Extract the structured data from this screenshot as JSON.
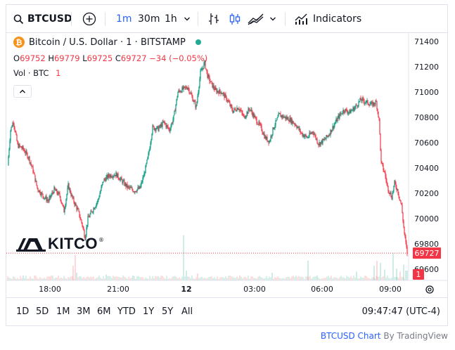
{
  "toolbar": {
    "symbol": "BTCUSD",
    "intervals": [
      "1m",
      "30m",
      "1h"
    ],
    "active_interval": "1m",
    "indicators_label": "Indicators"
  },
  "legend": {
    "title": "Bitcoin / U.S. Dollar · 1 · BITSTAMP",
    "o_label": "O",
    "o_value": "69752",
    "h_label": "H",
    "h_value": "69779",
    "l_label": "L",
    "l_value": "69725",
    "c_label": "C",
    "c_value": "69727",
    "change": "−34 (−0.05%)",
    "vol_label": "Vol · BTC",
    "vol_value": "1"
  },
  "logo": {
    "text": "KITCO"
  },
  "price_axis": {
    "ticks": [
      "71400",
      "71200",
      "71000",
      "70800",
      "70600",
      "70400",
      "70200",
      "70000",
      "69800",
      "69600"
    ],
    "last_price": "69727",
    "last_volume": "1"
  },
  "time_axis": {
    "ticks": [
      "18:00",
      "21:00",
      "12",
      "03:00",
      "06:00",
      "09:00"
    ]
  },
  "bottom": {
    "ranges": [
      "1D",
      "5D",
      "1M",
      "3M",
      "6M",
      "YTD",
      "1Y",
      "5Y",
      "All"
    ],
    "clock": "09:47:47 (UTC-4)"
  },
  "credit": {
    "link_text": "BTCUSD Chart",
    "by_text": "By TradingView"
  },
  "colors": {
    "up": "#089981",
    "down": "#f23645",
    "accent": "#2962ff",
    "btc": "#f7931a"
  },
  "chart_data": {
    "type": "candlestick",
    "series_name": "BTCUSD",
    "x_ticks": [
      "18:00",
      "21:00",
      "12",
      "03:00",
      "06:00",
      "09:00"
    ],
    "ylim": [
      69530,
      71460
    ],
    "y_ticks": [
      71400,
      71200,
      71000,
      70800,
      70600,
      70400,
      70200,
      70000,
      69800,
      69600
    ],
    "path": [
      [
        0,
        70420
      ],
      [
        4,
        70700
      ],
      [
        8,
        70770
      ],
      [
        14,
        70580
      ],
      [
        22,
        70550
      ],
      [
        30,
        70480
      ],
      [
        36,
        70380
      ],
      [
        42,
        70240
      ],
      [
        50,
        70180
      ],
      [
        58,
        70140
      ],
      [
        66,
        70230
      ],
      [
        74,
        70180
      ],
      [
        80,
        70060
      ],
      [
        86,
        70260
      ],
      [
        92,
        70160
      ],
      [
        100,
        70060
      ],
      [
        106,
        69950
      ],
      [
        110,
        69850
      ],
      [
        114,
        70000
      ],
      [
        120,
        70060
      ],
      [
        128,
        70140
      ],
      [
        136,
        70300
      ],
      [
        144,
        70340
      ],
      [
        154,
        70350
      ],
      [
        162,
        70300
      ],
      [
        170,
        70250
      ],
      [
        180,
        70220
      ],
      [
        188,
        70240
      ],
      [
        194,
        70350
      ],
      [
        200,
        70500
      ],
      [
        206,
        70720
      ],
      [
        214,
        70710
      ],
      [
        222,
        70760
      ],
      [
        230,
        70700
      ],
      [
        236,
        70800
      ],
      [
        242,
        71000
      ],
      [
        248,
        71020
      ],
      [
        256,
        71040
      ],
      [
        262,
        70960
      ],
      [
        268,
        70880
      ],
      [
        274,
        71150
      ],
      [
        280,
        71230
      ],
      [
        284,
        71130
      ],
      [
        290,
        71060
      ],
      [
        296,
        71010
      ],
      [
        304,
        71000
      ],
      [
        312,
        70940
      ],
      [
        320,
        70850
      ],
      [
        328,
        70880
      ],
      [
        336,
        70800
      ],
      [
        344,
        70870
      ],
      [
        352,
        70790
      ],
      [
        360,
        70720
      ],
      [
        366,
        70640
      ],
      [
        372,
        70610
      ],
      [
        378,
        70720
      ],
      [
        386,
        70820
      ],
      [
        394,
        70800
      ],
      [
        402,
        70780
      ],
      [
        410,
        70740
      ],
      [
        418,
        70670
      ],
      [
        426,
        70640
      ],
      [
        434,
        70690
      ],
      [
        442,
        70590
      ],
      [
        450,
        70620
      ],
      [
        456,
        70660
      ],
      [
        462,
        70720
      ],
      [
        470,
        70800
      ],
      [
        478,
        70860
      ],
      [
        486,
        70840
      ],
      [
        494,
        70880
      ],
      [
        502,
        70940
      ],
      [
        510,
        70920
      ],
      [
        518,
        70900
      ],
      [
        524,
        70920
      ],
      [
        528,
        70780
      ],
      [
        531,
        70440
      ],
      [
        536,
        70360
      ],
      [
        540,
        70250
      ],
      [
        546,
        70170
      ],
      [
        550,
        70280
      ],
      [
        554,
        70230
      ],
      [
        560,
        70100
      ],
      [
        564,
        69880
      ],
      [
        568,
        69727
      ]
    ],
    "volumes": [
      [
        0,
        0.3
      ],
      [
        22,
        0.5
      ],
      [
        60,
        0.4
      ],
      [
        93,
        1.5
      ],
      [
        96,
        2.6
      ],
      [
        98,
        0.8
      ],
      [
        140,
        0.6
      ],
      [
        178,
        0.5
      ],
      [
        250,
        4.6
      ],
      [
        254,
        1.0
      ],
      [
        270,
        0.7
      ],
      [
        330,
        0.5
      ],
      [
        376,
        0.8
      ],
      [
        427,
        2.0
      ],
      [
        440,
        0.5
      ],
      [
        496,
        0.9
      ],
      [
        521,
        1.5
      ],
      [
        525,
        2.0
      ],
      [
        530,
        1.8
      ],
      [
        536,
        1.1
      ],
      [
        548,
        2.8
      ],
      [
        553,
        1.2
      ],
      [
        558,
        0.9
      ],
      [
        563,
        1.6
      ],
      [
        566,
        1.0
      ],
      [
        568,
        1.0
      ]
    ]
  }
}
